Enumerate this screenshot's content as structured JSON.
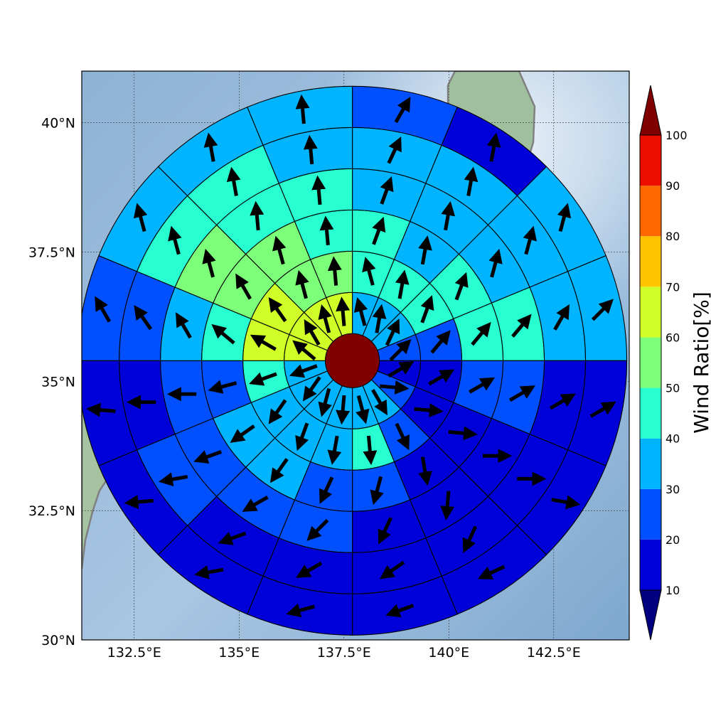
{
  "map": {
    "lon_ticks": [
      "132.5°E",
      "135°E",
      "137.5°E",
      "140°E",
      "142.5°E"
    ],
    "lat_ticks": [
      "30°N",
      "32.5°N",
      "35°N",
      "37.5°N",
      "40°N"
    ],
    "extent": {
      "lon_min": 131.25,
      "lon_max": 144.3,
      "lat_min": 30.0,
      "lat_max": 41.0
    },
    "tick_lon_values": [
      132.5,
      135,
      137.5,
      140,
      142.5
    ],
    "tick_lat_values": [
      30,
      32.5,
      35,
      37.5,
      40
    ],
    "gridlines": true,
    "center": {
      "lon": 137.7,
      "lat": 35.4
    },
    "center_color": "#800000",
    "coastline_color": "#808080",
    "ocean_color": "#8eb4d6",
    "land_color": "#9fbf9f"
  },
  "colorbar": {
    "label": "Wind Ratio[%]",
    "ticks": [
      "10",
      "20",
      "30",
      "40",
      "50",
      "60",
      "70",
      "80",
      "90",
      "100"
    ],
    "tick_values": [
      10,
      20,
      30,
      40,
      50,
      60,
      70,
      80,
      90,
      100
    ],
    "colors": [
      "#0000d8",
      "#0050ff",
      "#00b4ff",
      "#28ffd0",
      "#7cff79",
      "#d0ff28",
      "#ffc400",
      "#ff6800",
      "#ee0e00"
    ],
    "under_color": "#000080",
    "over_color": "#800000",
    "extend": "both"
  },
  "chart_data": {
    "type": "polar-sector-wind-ratio",
    "rings": 6,
    "sectors_per_ring": 16,
    "sector_order": "clockwise from north",
    "value_units": "%",
    "values": [
      [
        35,
        35,
        35,
        25,
        15,
        25,
        35,
        35,
        35,
        35,
        35,
        35,
        60,
        60,
        60,
        60
      ],
      [
        45,
        45,
        45,
        25,
        15,
        15,
        25,
        45,
        35,
        35,
        35,
        45,
        60,
        60,
        55,
        55
      ],
      [
        45,
        35,
        45,
        45,
        25,
        15,
        15,
        25,
        25,
        35,
        35,
        25,
        45,
        55,
        55,
        45
      ],
      [
        35,
        35,
        35,
        45,
        25,
        15,
        15,
        15,
        25,
        25,
        25,
        25,
        35,
        55,
        45,
        45
      ],
      [
        35,
        35,
        35,
        35,
        15,
        15,
        15,
        15,
        15,
        15,
        25,
        15,
        25,
        45,
        45,
        35
      ],
      [
        25,
        15,
        35,
        35,
        15,
        15,
        15,
        15,
        15,
        15,
        15,
        15,
        25,
        35,
        35,
        35
      ]
    ],
    "arrow_directions_deg": [
      [
        -15,
        10,
        25,
        45,
        60,
        95,
        150,
        165,
        185,
        195,
        215,
        250,
        310,
        330,
        345,
        355
      ],
      [
        -15,
        10,
        20,
        40,
        60,
        95,
        155,
        175,
        190,
        200,
        215,
        250,
        300,
        325,
        345,
        355
      ],
      [
        20,
        10,
        20,
        40,
        60,
        95,
        170,
        195,
        205,
        215,
        235,
        255,
        310,
        330,
        345,
        355
      ],
      [
        20,
        10,
        15,
        40,
        60,
        90,
        185,
        205,
        225,
        240,
        250,
        270,
        330,
        345,
        355,
        355
      ],
      [
        25,
        10,
        15,
        30,
        60,
        90,
        205,
        235,
        240,
        250,
        260,
        270,
        325,
        345,
        350,
        355
      ],
      [
        30,
        10,
        15,
        45,
        60,
        100,
        245,
        250,
        255,
        260,
        265,
        275,
        330,
        345,
        350,
        355
      ]
    ]
  }
}
